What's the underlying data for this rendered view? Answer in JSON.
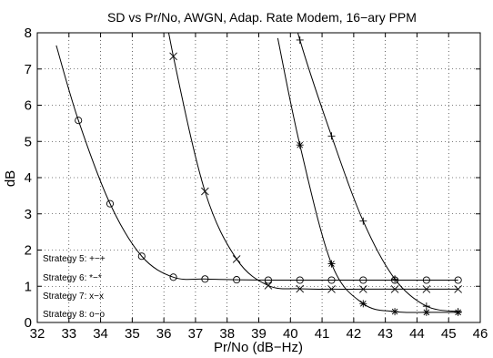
{
  "chart_data": {
    "type": "line",
    "title": "SD vs Pr/No, AWGN, Adap. Rate Modem, 16−ary PPM",
    "xlabel": "Pr/No (dB−Hz)",
    "ylabel": "dB",
    "xlim": [
      32,
      46
    ],
    "ylim": [
      0,
      8
    ],
    "xticks": [
      32,
      33,
      34,
      35,
      36,
      37,
      38,
      39,
      40,
      41,
      42,
      43,
      44,
      45,
      46
    ],
    "yticks": [
      0,
      1,
      2,
      3,
      4,
      5,
      6,
      7,
      8
    ],
    "grid": true,
    "legend_position": "bottom-left",
    "legend": [
      "Strategy 5: +−+",
      "Strategy 6: *−*",
      "Strategy 7: x−x",
      "Strategy 8: o−o"
    ],
    "series": [
      {
        "marker": "plus",
        "x": [
          40.3,
          41.3,
          42.3,
          43.3,
          44.3,
          45.3
        ],
        "y": [
          7.8,
          5.15,
          2.8,
          1.2,
          0.45,
          0.3
        ]
      },
      {
        "marker": "star",
        "x": [
          40.3,
          41.3,
          42.3,
          43.3,
          44.3,
          45.3
        ],
        "y": [
          4.9,
          1.62,
          0.52,
          0.3,
          0.28,
          0.28
        ]
      },
      {
        "marker": "x",
        "x": [
          36.3,
          37.3,
          38.3,
          39.3,
          40.3,
          41.3,
          42.3,
          43.3,
          44.3,
          45.3
        ],
        "y": [
          7.35,
          3.62,
          1.75,
          1.02,
          0.93,
          0.92,
          0.92,
          0.92,
          0.92,
          0.92
        ]
      },
      {
        "marker": "circle",
        "x": [
          33.3,
          34.3,
          35.3,
          36.3,
          37.3,
          38.3,
          39.3,
          40.3,
          41.3,
          42.3,
          43.3,
          44.3,
          45.3
        ],
        "y": [
          5.58,
          3.28,
          1.83,
          1.25,
          1.2,
          1.18,
          1.17,
          1.17,
          1.17,
          1.17,
          1.17,
          1.17,
          1.17
        ]
      }
    ]
  }
}
